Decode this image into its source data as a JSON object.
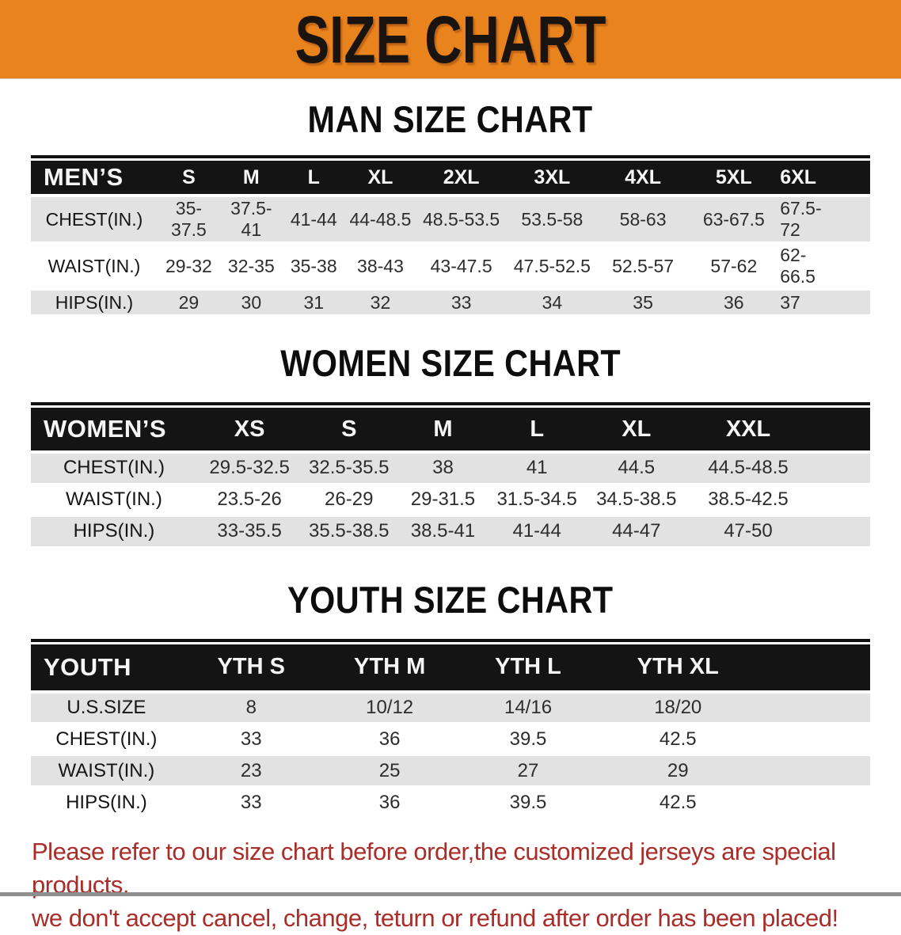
{
  "banner": {
    "title": "SIZE CHART"
  },
  "sections": [
    {
      "heading": "MAN SIZE CHART",
      "header_label": "MEN’S",
      "columns": [
        "S",
        "M",
        "L",
        "XL",
        "2XL",
        "3XL",
        "4XL",
        "5XL",
        "6XL"
      ],
      "rows": [
        {
          "label": "CHEST(IN.)",
          "values": [
            "35-37.5",
            "37.5-41",
            "41-44",
            "44-48.5",
            "48.5-53.5",
            "53.5-58",
            "58-63",
            "63-67.5",
            "67.5-72"
          ]
        },
        {
          "label": "WAIST(IN.)",
          "values": [
            "29-32",
            "32-35",
            "35-38",
            "38-43",
            "43-47.5",
            "47.5-52.5",
            "52.5-57",
            "57-62",
            "62-66.5"
          ]
        },
        {
          "label": "HIPS(IN.)",
          "values": [
            "29",
            "30",
            "31",
            "32",
            "33",
            "34",
            "35",
            "36",
            "37"
          ]
        }
      ]
    },
    {
      "heading": "WOMEN SIZE CHART",
      "header_label": "WOMEN’S",
      "columns": [
        "XS",
        "S",
        "M",
        "L",
        "XL",
        "XXL"
      ],
      "rows": [
        {
          "label": "CHEST(IN.)",
          "values": [
            "29.5-32.5",
            "32.5-35.5",
            "38",
            "41",
            "44.5",
            "44.5-48.5"
          ]
        },
        {
          "label": "WAIST(IN.)",
          "values": [
            "23.5-26",
            "26-29",
            "29-31.5",
            "31.5-34.5",
            "34.5-38.5",
            "38.5-42.5"
          ]
        },
        {
          "label": "HIPS(IN.)",
          "values": [
            "33-35.5",
            "35.5-38.5",
            "38.5-41",
            "41-44",
            "44-47",
            "47-50"
          ]
        }
      ]
    },
    {
      "heading": "YOUTH SIZE CHART",
      "header_label": "YOUTH",
      "columns": [
        "YTH S",
        "YTH M",
        "YTH L",
        "YTH XL"
      ],
      "rows": [
        {
          "label": "U.S.SIZE",
          "values": [
            "8",
            "10/12",
            "14/16",
            "18/20"
          ]
        },
        {
          "label": "CHEST(IN.)",
          "values": [
            "33",
            "36",
            "39.5",
            "42.5"
          ]
        },
        {
          "label": "WAIST(IN.)",
          "values": [
            "23",
            "25",
            "27",
            "29"
          ]
        },
        {
          "label": "HIPS(IN.)",
          "values": [
            "33",
            "36",
            "39.5",
            "42.5"
          ]
        }
      ]
    }
  ],
  "disclaimer": {
    "line1": "Please refer to our size chart before order,the customized jerseys are special products,",
    "line2": "we don't accept cancel, change, teturn or refund after order has been placed!"
  },
  "colors": {
    "banner_orange": "#E8831E",
    "header_bar_black": "#141414",
    "row_gray": "#E2E2E2",
    "disclaimer_red": "#A92D28"
  }
}
